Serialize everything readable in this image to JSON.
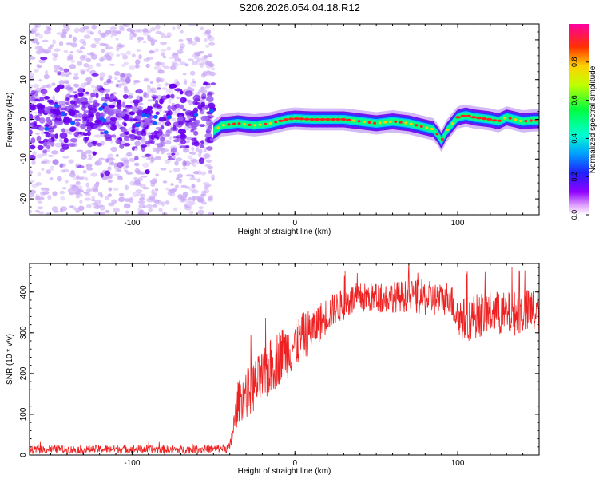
{
  "title": "S206.2026.054.04.18.R12",
  "colors": {
    "snr_line": "#ee2222",
    "spectrogram_core": "#ff2020",
    "spectrogram_mid": "#00ff88",
    "spectrogram_edge": "#2040ff",
    "noise_purple": "#6a00ee",
    "noise_light": "#c9a8f5"
  },
  "chart_data": [
    {
      "type": "heatmap",
      "name": "spectrogram",
      "xlabel": "Height of straight line (km)",
      "ylabel": "Frequency (Hz)",
      "xlim": [
        -163,
        150
      ],
      "ylim": [
        -24,
        24
      ],
      "x_ticks": [
        -100,
        0,
        100
      ],
      "y_ticks": [
        20,
        10,
        0,
        -10,
        -20
      ],
      "x_tick_labels": [
        "-100",
        "0",
        "100"
      ],
      "y_tick_labels": [
        "20",
        "10",
        "0",
        "-10",
        "-20"
      ],
      "noise_region_x": [
        -163,
        -50
      ],
      "ridge": {
        "x": [
          -50,
          -45,
          -35,
          -25,
          -15,
          -5,
          0,
          10,
          20,
          30,
          40,
          50,
          60,
          70,
          75,
          80,
          85,
          88,
          90,
          93,
          97,
          100,
          105,
          110,
          120,
          125,
          130,
          135,
          140,
          145,
          150
        ],
        "freq": [
          -3,
          -1.5,
          -1,
          -1.5,
          -1,
          0,
          0.2,
          0,
          0,
          0,
          -0.5,
          -1,
          -0.5,
          -1,
          -1.5,
          -2,
          -2.5,
          -4,
          -5.5,
          -3,
          -1,
          0.5,
          1,
          0.5,
          0,
          -0.5,
          0.5,
          0,
          -0.5,
          -0.3,
          -0.2
        ]
      },
      "colorbar": {
        "label": "Normalized spectral amplitude",
        "range": [
          0,
          1
        ],
        "ticks": [
          0.0,
          0.2,
          0.4,
          0.6,
          0.8
        ],
        "tick_labels": [
          "0.0",
          "0.2",
          "0.4",
          "0.6",
          "0.8"
        ]
      }
    },
    {
      "type": "line",
      "name": "snr",
      "xlabel": "Height of straight line (km)",
      "ylabel": "SNR (10 * v/v)",
      "xlim": [
        -163,
        150
      ],
      "ylim": [
        0,
        470
      ],
      "x_ticks": [
        -100,
        0,
        100
      ],
      "y_ticks": [
        0,
        100,
        200,
        300,
        400
      ],
      "x_tick_labels": [
        "-100",
        "0",
        "100"
      ],
      "y_tick_labels": [
        "0",
        "100",
        "200",
        "300",
        "400"
      ],
      "series": [
        {
          "x": [
            -163,
            -150,
            -130,
            -110,
            -90,
            -70,
            -50,
            -40,
            -38,
            -35,
            -30,
            -25,
            -20,
            -15,
            -10,
            -5,
            0,
            5,
            10,
            15,
            20,
            25,
            30,
            35,
            40,
            50,
            60,
            70,
            80,
            90,
            95,
            100,
            105,
            110,
            120,
            130,
            140,
            150
          ],
          "values": [
            12,
            14,
            13,
            15,
            14,
            13,
            15,
            18,
            60,
            130,
            150,
            170,
            190,
            215,
            240,
            255,
            270,
            290,
            305,
            325,
            345,
            360,
            370,
            380,
            385,
            385,
            388,
            390,
            385,
            380,
            390,
            340,
            330,
            340,
            350,
            345,
            350,
            355
          ],
          "noise_amplitude": [
            10,
            10,
            10,
            10,
            10,
            10,
            10,
            12,
            30,
            50,
            60,
            65,
            65,
            70,
            70,
            70,
            60,
            60,
            55,
            50,
            45,
            40,
            40,
            40,
            38,
            38,
            38,
            40,
            45,
            42,
            40,
            55,
            55,
            55,
            55,
            55,
            55,
            60
          ]
        }
      ]
    }
  ]
}
